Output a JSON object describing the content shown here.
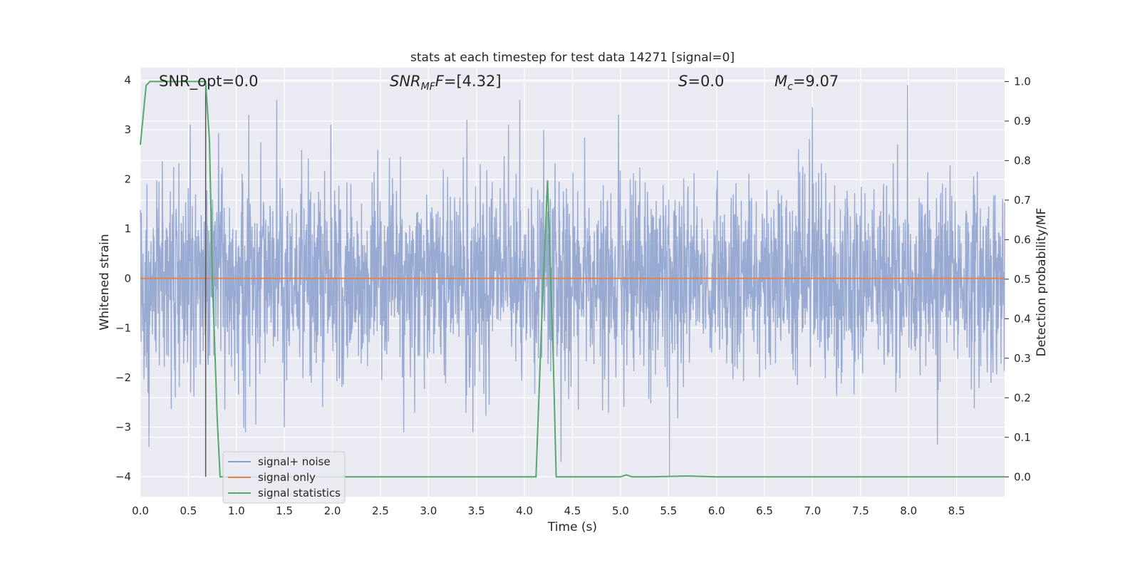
{
  "chart_data": {
    "type": "line",
    "title": "stats at each timestep for test data 14271 [signal=0]",
    "xlabel": "Time (s)",
    "ylabel": "Whitened strain",
    "y2label": "Detection probability/MF",
    "xlim": [
      0.0,
      9.0
    ],
    "ylim": [
      -4.4,
      4.25
    ],
    "y2lim": [
      -0.05,
      1.035
    ],
    "xticks": [
      "0.0",
      "0.5",
      "1.0",
      "1.5",
      "2.0",
      "2.5",
      "3.0",
      "3.5",
      "4.0",
      "4.5",
      "5.0",
      "5.5",
      "6.0",
      "6.5",
      "7.0",
      "7.5",
      "8.0",
      "8.5"
    ],
    "yticks": [
      "−4",
      "−3",
      "−2",
      "−1",
      "0",
      "1",
      "2",
      "3",
      "4"
    ],
    "y2ticks": [
      "0.0",
      "0.1",
      "0.2",
      "0.3",
      "0.4",
      "0.5",
      "0.6",
      "0.7",
      "0.8",
      "0.9",
      "1.0"
    ],
    "grid": true,
    "legend_position": "lower-left",
    "annotations": {
      "snr_opt": "SNR_opt=0.0",
      "snr_mf_main": "SNR",
      "snr_mf_sub": "MF",
      "snr_mf_tail": "=[4.32]",
      "s_main": "S",
      "s_tail": "=0.0",
      "mc_main": "M",
      "mc_sub": "c",
      "mc_tail": "=9.07"
    },
    "series": [
      {
        "name": "signal+ noise",
        "color": "#8a9fcd",
        "axis": "left",
        "style": "dense noise, amplitude mostly within ±2.5, extremes about ±4",
        "notable_peaks": [
          {
            "x": 0.09,
            "y": -3.4
          },
          {
            "x": 0.52,
            "y": 3.1
          },
          {
            "x": 1.13,
            "y": 3.3
          },
          {
            "x": 1.42,
            "y": 3.6
          },
          {
            "x": 1.5,
            "y": -3.0
          },
          {
            "x": 3.4,
            "y": 3.2
          },
          {
            "x": 3.95,
            "y": 3.6
          },
          {
            "x": 4.2,
            "y": 3.0
          },
          {
            "x": 4.38,
            "y": -3.7
          },
          {
            "x": 4.98,
            "y": 3.3
          },
          {
            "x": 5.51,
            "y": -4.0
          },
          {
            "x": 7.0,
            "y": 3.45
          },
          {
            "x": 7.99,
            "y": 3.9
          },
          {
            "x": 8.3,
            "y": -3.35
          }
        ]
      },
      {
        "name": "signal only",
        "color": "#dd8452",
        "axis": "left",
        "x": [
          0.0,
          9.0
        ],
        "y": [
          0.0,
          0.0
        ]
      },
      {
        "name": "signal statistics",
        "color": "#55a868",
        "axis": "right",
        "x": [
          0.0,
          0.06,
          0.1,
          0.2,
          0.4,
          0.55,
          0.68,
          0.72,
          0.75,
          0.8,
          0.83,
          1.0,
          2.0,
          3.0,
          4.0,
          4.12,
          4.18,
          4.24,
          4.3,
          4.33,
          4.4,
          5.0,
          5.06,
          5.12,
          5.3,
          5.7,
          6.0,
          7.0,
          8.0,
          9.0
        ],
        "y": [
          0.84,
          0.99,
          1.0,
          1.0,
          1.0,
          1.0,
          1.0,
          0.85,
          0.5,
          0.15,
          0.0,
          0.0,
          0.0,
          0.0,
          0.0,
          0.0,
          0.4,
          0.75,
          0.3,
          0.0,
          0.0,
          0.0,
          0.005,
          0.0,
          0.0,
          0.002,
          0.0,
          0.0,
          0.0,
          0.0
        ]
      }
    ],
    "vertical_marker": {
      "x": 0.68,
      "color": "#555555"
    }
  }
}
